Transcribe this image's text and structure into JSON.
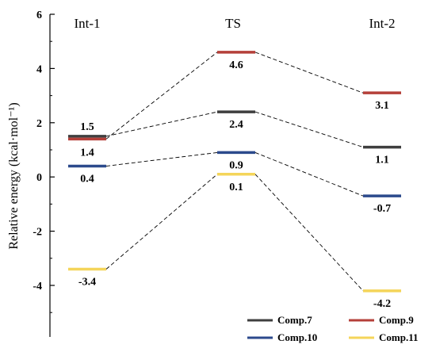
{
  "chart_data": {
    "type": "energy-profile",
    "ylabel": "Relative energy (kcal·mol⁻¹)",
    "ylim": [
      -5,
      6
    ],
    "y_ticks": [
      6,
      4,
      2,
      0,
      -2,
      -4
    ],
    "y_tick_labels": [
      "6",
      "4",
      "2",
      "0",
      "-2",
      "-4"
    ],
    "stages": [
      "Int-1",
      "TS",
      "Int-2"
    ],
    "series": [
      {
        "name": "Comp.7",
        "color": "#3f3f3f",
        "values": [
          1.5,
          2.4,
          1.1
        ],
        "labels": [
          "1.5",
          "2.4",
          "1.1"
        ]
      },
      {
        "name": "Comp.9",
        "color": "#b5403a",
        "values": [
          1.4,
          4.6,
          3.1
        ],
        "labels": [
          "1.4",
          "4.6",
          "3.1"
        ]
      },
      {
        "name": "Comp.10",
        "color": "#2c4a8c",
        "values": [
          0.4,
          0.9,
          -0.7
        ],
        "labels": [
          "0.4",
          "0.9",
          "-0.7"
        ]
      },
      {
        "name": "Comp.11",
        "color": "#f4d55a",
        "values": [
          -3.4,
          0.1,
          -4.2
        ],
        "labels": [
          "-3.4",
          "0.1",
          "-4.2"
        ]
      }
    ],
    "legend_position": "bottom-right",
    "grid": false
  }
}
